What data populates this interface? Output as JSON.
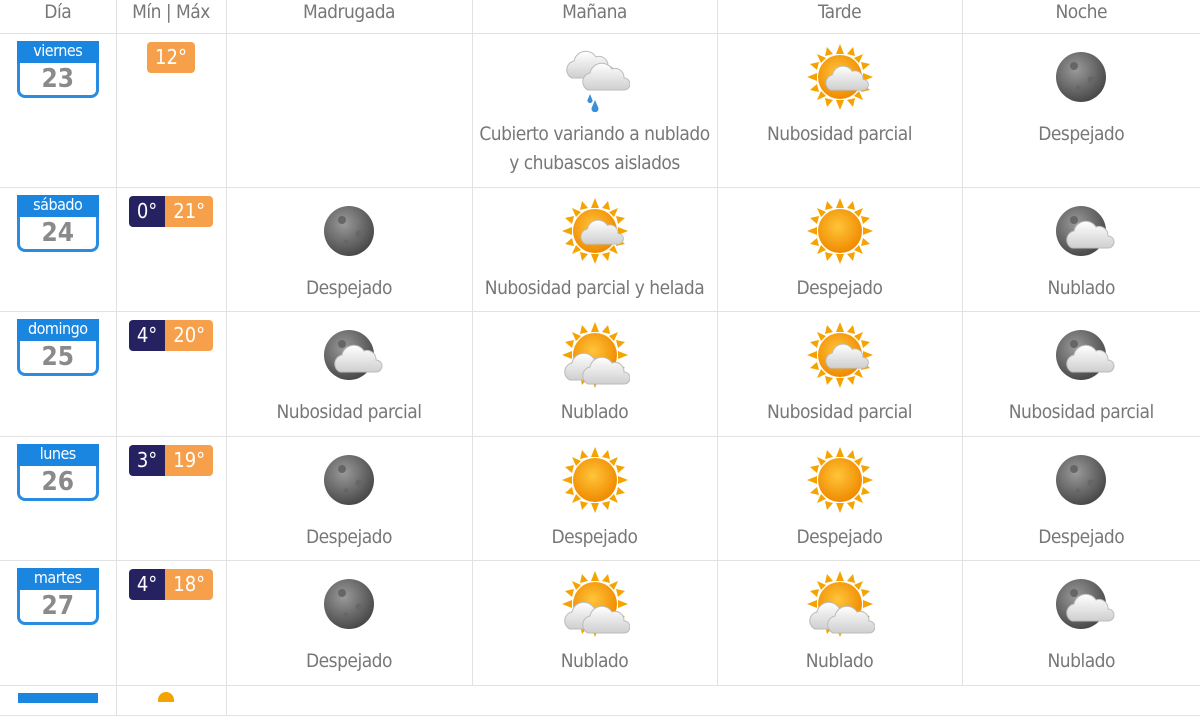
{
  "headers": [
    "Día",
    "Mín | Máx",
    "Madrugada",
    "Mañana",
    "Tarde",
    "Noche"
  ],
  "colors": {
    "calendar_blue": "#1a86e0",
    "min_bg": "#262262",
    "max_bg": "#f7a04b"
  },
  "days": [
    {
      "weekday": "viernes",
      "day": "23",
      "min": null,
      "max": "12°",
      "periods": [
        null,
        {
          "icon": "cloud-rain-icon",
          "desc": "Cubierto variando a nublado y chubascos aislados"
        },
        {
          "icon": "sun-cloud-icon",
          "desc": "Nubosidad parcial"
        },
        {
          "icon": "moon-icon",
          "desc": "Despejado"
        }
      ]
    },
    {
      "weekday": "sábado",
      "day": "24",
      "min": "0°",
      "max": "21°",
      "periods": [
        {
          "icon": "moon-icon",
          "desc": "Despejado"
        },
        {
          "icon": "sun-cloud-icon",
          "desc": "Nubosidad parcial y helada"
        },
        {
          "icon": "sun-icon",
          "desc": "Despejado"
        },
        {
          "icon": "moon-cloud-icon",
          "desc": "Nublado"
        }
      ]
    },
    {
      "weekday": "domingo",
      "day": "25",
      "min": "4°",
      "max": "20°",
      "periods": [
        {
          "icon": "moon-cloud-icon",
          "desc": "Nubosidad parcial"
        },
        {
          "icon": "sun-clouds-icon",
          "desc": "Nublado"
        },
        {
          "icon": "sun-cloud-icon",
          "desc": "Nubosidad parcial"
        },
        {
          "icon": "moon-cloud-icon",
          "desc": "Nubosidad parcial"
        }
      ]
    },
    {
      "weekday": "lunes",
      "day": "26",
      "min": "3°",
      "max": "19°",
      "periods": [
        {
          "icon": "moon-icon",
          "desc": "Despejado"
        },
        {
          "icon": "sun-icon",
          "desc": "Despejado"
        },
        {
          "icon": "sun-icon",
          "desc": "Despejado"
        },
        {
          "icon": "moon-icon",
          "desc": "Despejado"
        }
      ]
    },
    {
      "weekday": "martes",
      "day": "27",
      "min": "4°",
      "max": "18°",
      "periods": [
        {
          "icon": "moon-icon",
          "desc": "Despejado"
        },
        {
          "icon": "sun-clouds-icon",
          "desc": "Nublado"
        },
        {
          "icon": "sun-clouds-icon",
          "desc": "Nublado"
        },
        {
          "icon": "moon-cloud-icon",
          "desc": "Nublado"
        }
      ]
    }
  ]
}
